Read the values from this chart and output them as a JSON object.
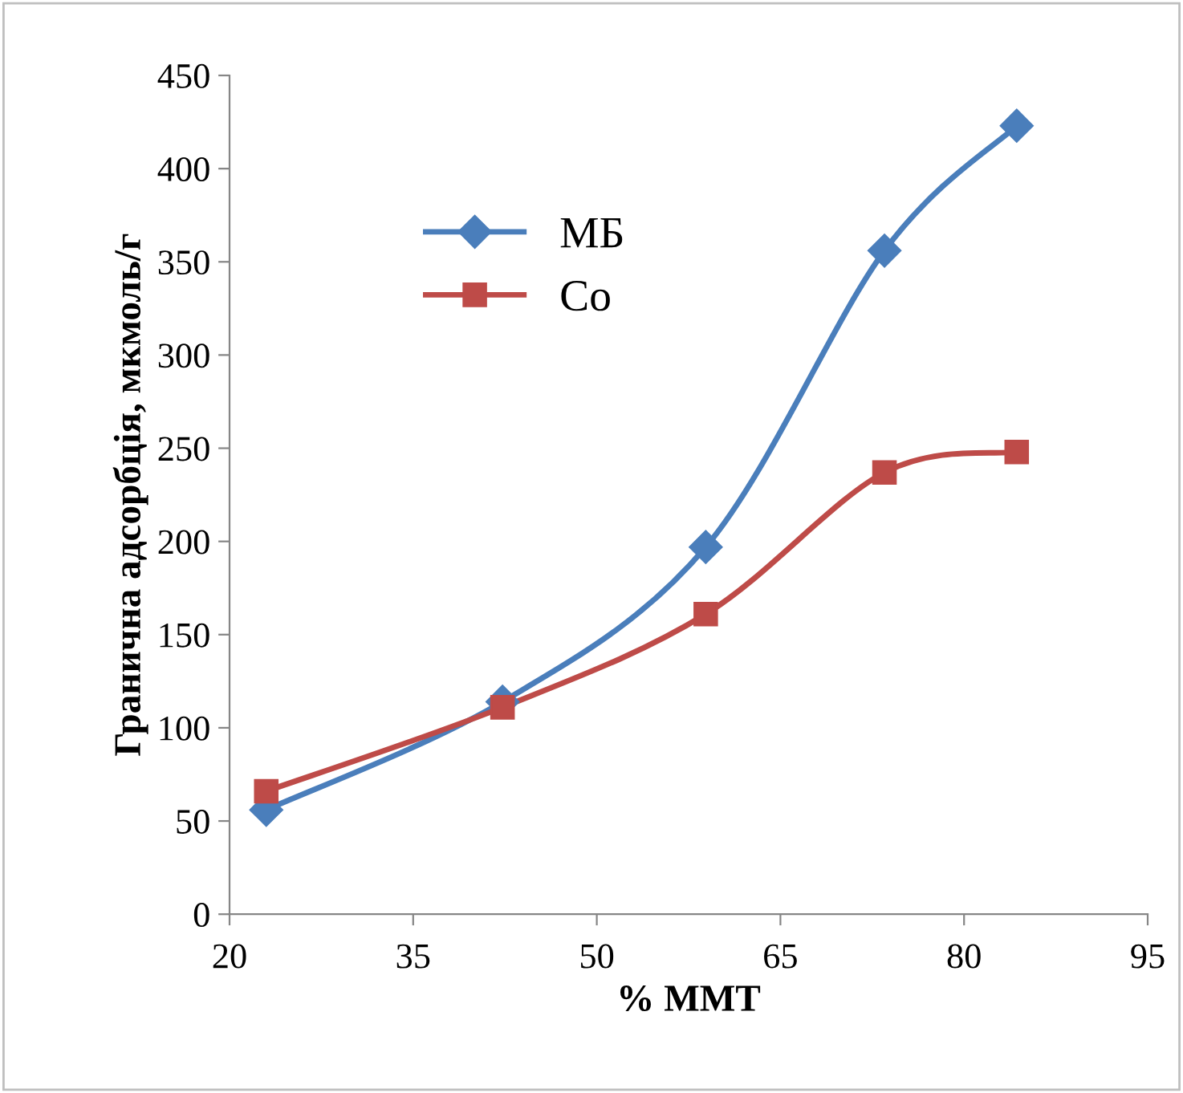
{
  "chart_data": {
    "type": "line",
    "xlabel": "% ММТ",
    "ylabel": "Гранична адсорбція, мкмоль/г",
    "x": [
      23,
      42.3,
      58.9,
      73.5,
      84.3
    ],
    "series": [
      {
        "name": "МБ",
        "color": "#4a7ebb",
        "marker": "diamond",
        "values": [
          56,
          114,
          197,
          356,
          423
        ]
      },
      {
        "name": "Co",
        "color": "#be4b48",
        "marker": "square",
        "values": [
          66,
          111,
          161,
          237,
          248
        ]
      }
    ],
    "xlim": [
      20,
      95
    ],
    "xticks": [
      20,
      35,
      50,
      65,
      80,
      95
    ],
    "ylim": [
      0,
      450
    ],
    "yticks": [
      0,
      50,
      100,
      150,
      200,
      250,
      300,
      350,
      400,
      450
    ],
    "grid": false,
    "legend": "top left",
    "line_style": "solid"
  }
}
